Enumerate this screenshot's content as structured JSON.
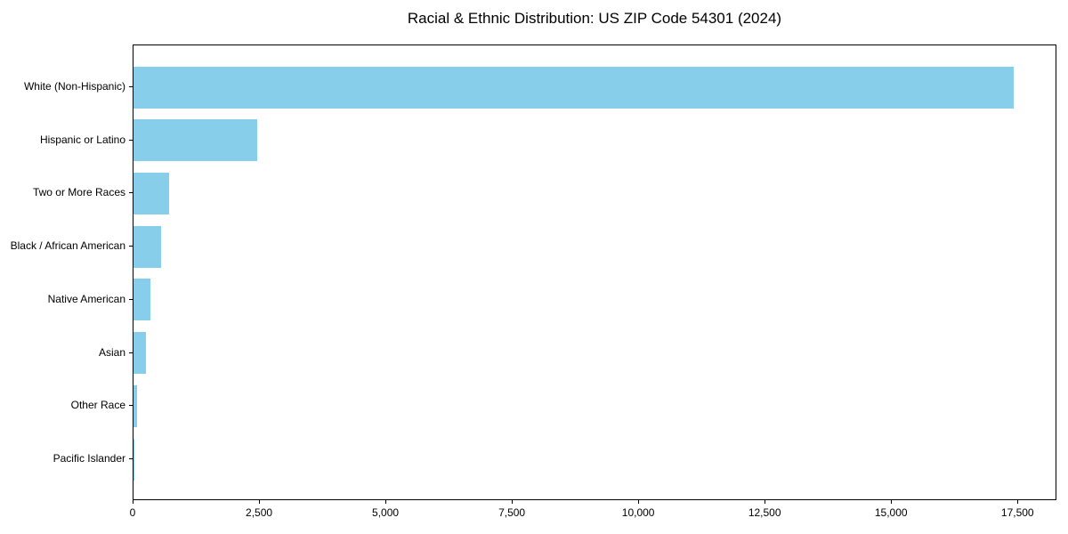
{
  "chart_data": {
    "type": "bar",
    "orientation": "horizontal",
    "title": "Racial & Ethnic Distribution: US ZIP Code 54301 (2024)",
    "categories": [
      "White (Non-Hispanic)",
      "Hispanic or Latino",
      "Two or More Races",
      "Black / African American",
      "Native American",
      "Asian",
      "Other Race",
      "Pacific Islander"
    ],
    "values": [
      17400,
      2450,
      700,
      550,
      340,
      255,
      75,
      15
    ],
    "xlabel": "",
    "ylabel": "",
    "xlim": [
      0,
      18270
    ],
    "xticks": [
      0,
      2500,
      5000,
      7500,
      10000,
      12500,
      15000,
      17500
    ],
    "xtick_labels": [
      "0",
      "2,500",
      "5,000",
      "7,500",
      "10,000",
      "12,500",
      "15,000",
      "17,500"
    ],
    "bar_color": "#87CEEB",
    "text_color": "#000000",
    "grid": false,
    "legend": false
  }
}
